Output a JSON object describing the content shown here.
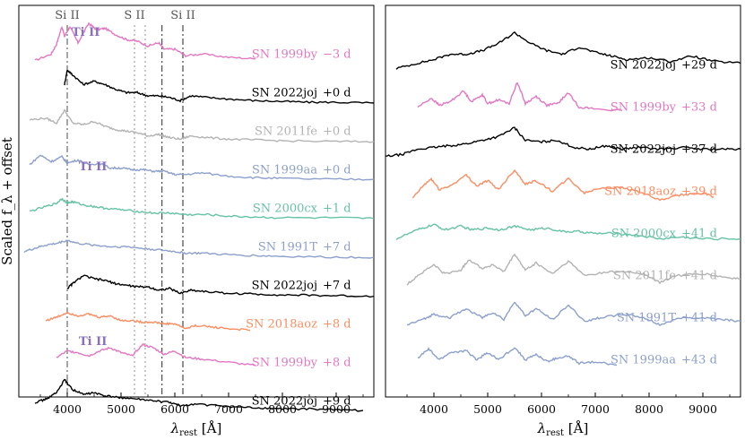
{
  "chart_data": [
    {
      "type": "line",
      "panel": "left",
      "xlabel_main": "λ",
      "xlabel_sub": "rest",
      "xlabel_unit": "[Å]",
      "ylabel": "Scaled f_λ + offset",
      "xlim": [
        3100,
        9700
      ],
      "xticks": [
        "4000",
        "5000",
        "6000",
        "7000",
        "8000",
        "9000"
      ],
      "xtick_values": [
        4000,
        5000,
        6000,
        7000,
        8000,
        9000
      ],
      "ytick_labels": [],
      "line_markers": [
        {
          "label": "Si II",
          "x": 4000,
          "style": "dashdot",
          "color": "#777777"
        },
        {
          "label": "S II",
          "x": 5250,
          "style": "dotted",
          "color": "#aaaaaa"
        },
        {
          "label": "",
          "x": 5450,
          "style": "dotted",
          "color": "#aaaaaa"
        },
        {
          "label": "",
          "x": 5760,
          "style": "dashdot",
          "color": "#555555"
        },
        {
          "label": "Si II",
          "x": 6150,
          "style": "dashdot",
          "color": "#555555"
        }
      ],
      "ion_labels": [
        {
          "label": "Ti II",
          "color": "#8a6fbf",
          "series": "SN 1999by −3 d"
        },
        {
          "label": "Ti II",
          "color": "#8a6fbf",
          "series": "SN 1999aa +0 d"
        },
        {
          "label": "Ti II",
          "color": "#8a6fbf",
          "series": "SN 1999by +8 d"
        }
      ],
      "series": [
        {
          "name": "SN 1999by",
          "epoch": "−3 d",
          "color": "#e377c2",
          "offset": 9,
          "x": [
            3400,
            3700,
            3800,
            3900,
            3950,
            4050,
            4200,
            4400,
            4550,
            4700,
            4900,
            5100,
            5300,
            5500,
            5700,
            5800,
            6000,
            6200,
            6500,
            7000,
            7500
          ],
          "y": [
            0.5,
            0.9,
            1.5,
            2.6,
            2.0,
            2.6,
            1.6,
            2.8,
            2.4,
            2.5,
            2.1,
            1.8,
            1.7,
            1.4,
            1.6,
            1.2,
            1.2,
            0.8,
            0.9,
            0.7,
            0.6
          ]
        },
        {
          "name": "SN 2022joj",
          "epoch": "+0 d",
          "color": "#000000",
          "offset": 8,
          "x": [
            3950,
            4000,
            4100,
            4300,
            4500,
            4700,
            4900,
            5100,
            5300,
            5500,
            5700,
            5900,
            6100,
            6300,
            6600,
            7000,
            7500,
            8000,
            8500,
            9000,
            9700
          ],
          "y": [
            1.4,
            2.3,
            2.0,
            1.4,
            1.6,
            1.4,
            1.1,
            0.9,
            0.9,
            0.7,
            0.7,
            0.6,
            0.4,
            0.7,
            0.6,
            0.5,
            0.4,
            0.35,
            0.3,
            0.3,
            0.25
          ]
        },
        {
          "name": "SN 2011fe",
          "epoch": "+0 d",
          "color": "#b3b3b3",
          "offset": 7,
          "x": [
            3300,
            3600,
            3800,
            3950,
            4100,
            4300,
            4500,
            4700,
            4900,
            5100,
            5300,
            5500,
            5700,
            5900,
            6100,
            6300,
            6600,
            7000,
            7500,
            8000,
            9000,
            9700
          ],
          "y": [
            1.6,
            1.7,
            1.4,
            2.2,
            1.4,
            1.3,
            1.5,
            1.2,
            1.0,
            0.9,
            0.8,
            0.6,
            0.7,
            0.5,
            0.4,
            0.6,
            0.5,
            0.4,
            0.35,
            0.3,
            0.25,
            0.25
          ]
        },
        {
          "name": "SN 1999aa",
          "epoch": "+0 d",
          "color": "#8da0cb",
          "offset": 6,
          "x": [
            3300,
            3500,
            3700,
            3900,
            4000,
            4200,
            4400,
            4600,
            4800,
            5000,
            5200,
            5400,
            5600,
            5800,
            6000,
            6200,
            6500,
            7000,
            7500,
            8000,
            9000,
            9700
          ],
          "y": [
            1.2,
            1.8,
            1.4,
            1.7,
            1.3,
            1.5,
            1.2,
            1.3,
            1.0,
            1.0,
            0.9,
            0.9,
            0.8,
            0.8,
            0.6,
            0.6,
            0.7,
            0.5,
            0.4,
            0.35,
            0.3,
            0.3
          ]
        },
        {
          "name": "SN 2000cx",
          "epoch": "+1 d",
          "color": "#66c2a5",
          "offset": 5,
          "x": [
            3300,
            3600,
            3800,
            3900,
            4000,
            4100,
            4300,
            4500,
            4700,
            5000,
            5300,
            5600,
            5900,
            6200,
            6600,
            7000,
            7500,
            8000,
            9000,
            9700
          ],
          "y": [
            0.7,
            1.0,
            1.2,
            1.5,
            1.2,
            1.3,
            1.1,
            1.0,
            0.9,
            0.8,
            0.7,
            0.6,
            0.6,
            0.5,
            0.5,
            0.4,
            0.35,
            0.3,
            0.3,
            0.25
          ]
        },
        {
          "name": "SN 1991T",
          "epoch": "+7 d",
          "color": "#8da0cb",
          "offset": 4,
          "x": [
            3200,
            3400,
            3600,
            3800,
            4000,
            4200,
            4500,
            4800,
            5100,
            5400,
            5700,
            6000,
            6200,
            6500,
            7000,
            7500,
            8000,
            9000,
            9700
          ],
          "y": [
            0.6,
            0.8,
            1.0,
            1.1,
            1.3,
            1.1,
            1.0,
            0.9,
            0.9,
            0.8,
            0.7,
            0.6,
            0.5,
            0.5,
            0.4,
            0.35,
            0.3,
            0.25,
            0.25
          ]
        },
        {
          "name": "SN 2022joj",
          "epoch": "+7 d",
          "color": "#000000",
          "offset": 3,
          "x": [
            4000,
            4100,
            4300,
            4500,
            4700,
            4900,
            5100,
            5300,
            5500,
            5700,
            5900,
            6100,
            6300,
            6600,
            7000,
            7500,
            8000,
            8500,
            9000,
            9700
          ],
          "y": [
            0.7,
            1.0,
            1.5,
            1.3,
            1.2,
            1.0,
            0.9,
            0.8,
            0.8,
            0.6,
            0.7,
            0.4,
            0.6,
            0.5,
            0.4,
            0.35,
            0.3,
            0.28,
            0.25,
            0.22
          ]
        },
        {
          "name": "SN 2018aoz",
          "epoch": "+8 d",
          "color": "#fc8d62",
          "offset": 2,
          "x": [
            3600,
            3800,
            4000,
            4200,
            4400,
            4600,
            4800,
            5000,
            5200,
            5400,
            5600,
            5800,
            6000,
            6200,
            6400,
            6700,
            7000,
            7400
          ],
          "y": [
            1.1,
            1.3,
            1.6,
            1.4,
            1.5,
            1.3,
            1.4,
            1.1,
            1.1,
            1.0,
            1.0,
            0.9,
            0.9,
            0.6,
            0.8,
            0.7,
            0.6,
            0.5
          ]
        },
        {
          "name": "SN 1999by",
          "epoch": "+8 d",
          "color": "#e377c2",
          "offset": 1,
          "x": [
            3800,
            4000,
            4200,
            4400,
            4600,
            4800,
            5000,
            5200,
            5400,
            5600,
            5800,
            6000,
            6200,
            6500,
            7000,
            7500
          ],
          "y": [
            1.2,
            1.6,
            1.5,
            1.3,
            1.6,
            1.8,
            1.5,
            1.3,
            2.0,
            1.8,
            1.4,
            1.6,
            1.2,
            1.1,
            0.9,
            0.7
          ]
        },
        {
          "name": "SN 2022joj",
          "epoch": "+9 d",
          "color": "#000000",
          "offset": 0,
          "x": [
            3400,
            3600,
            3800,
            3950,
            4100,
            4300,
            4500,
            4700,
            5000,
            5300,
            5600,
            5900,
            6100,
            6400,
            6800,
            7200,
            7600,
            8000,
            8500,
            9000,
            9500
          ],
          "y": [
            0.8,
            1.0,
            1.4,
            2.2,
            1.6,
            1.3,
            1.4,
            1.2,
            1.1,
            1.0,
            0.9,
            0.8,
            0.6,
            0.7,
            0.6,
            0.5,
            0.45,
            0.4,
            0.4,
            0.35,
            0.3
          ]
        }
      ]
    },
    {
      "type": "line",
      "panel": "right",
      "xlabel_main": "λ",
      "xlabel_sub": "rest",
      "xlabel_unit": "[Å]",
      "xlim": [
        3100,
        9700
      ],
      "xticks": [
        "4000",
        "5000",
        "6000",
        "7000",
        "8000",
        "9000"
      ],
      "xtick_values": [
        4000,
        5000,
        6000,
        7000,
        8000,
        9000
      ],
      "series": [
        {
          "name": "SN 2022joj",
          "epoch": "+29 d",
          "color": "#000000",
          "offset": 8,
          "x": [
            3300,
            3700,
            4000,
            4300,
            4600,
            4900,
            5200,
            5500,
            5800,
            6100,
            6400,
            6700,
            7000,
            7300,
            7600,
            8000,
            8400,
            8800,
            9200,
            9700
          ],
          "y": [
            0.6,
            0.9,
            1.1,
            1.4,
            1.4,
            1.6,
            2.0,
            2.6,
            2.0,
            1.6,
            1.4,
            1.8,
            1.5,
            1.3,
            1.1,
            1.2,
            1.0,
            1.3,
            1.0,
            0.9
          ]
        },
        {
          "name": "SN 1999by",
          "epoch": "+33 d",
          "color": "#e377c2",
          "offset": 7,
          "x": [
            3700,
            3950,
            4100,
            4300,
            4550,
            4700,
            4900,
            5000,
            5200,
            5400,
            5550,
            5700,
            5900,
            6100,
            6300,
            6500,
            6700,
            7000,
            7500
          ],
          "y": [
            0.8,
            1.3,
            0.9,
            1.1,
            1.7,
            1.1,
            1.5,
            1.0,
            1.2,
            1.0,
            2.2,
            1.0,
            1.4,
            0.9,
            1.0,
            1.6,
            0.8,
            0.7,
            0.6
          ]
        },
        {
          "name": "SN 2022joj",
          "epoch": "+37 d",
          "color": "#000000",
          "offset": 6,
          "x": [
            3100,
            3400,
            3700,
            4000,
            4300,
            4600,
            4900,
            5200,
            5500,
            5700,
            6000,
            6300,
            6600,
            6900,
            7200,
            7500,
            7800,
            8200,
            8600,
            9000,
            9400,
            9700
          ],
          "y": [
            0.4,
            0.5,
            0.8,
            0.9,
            1.0,
            1.1,
            1.3,
            1.5,
            2.0,
            1.3,
            1.2,
            1.3,
            0.9,
            0.8,
            1.0,
            0.8,
            0.9,
            0.8,
            0.9,
            0.8,
            0.8,
            0.8
          ]
        },
        {
          "name": "SN 2018aoz",
          "epoch": "+39 d",
          "color": "#fc8d62",
          "offset": 5,
          "x": [
            3600,
            3800,
            3950,
            4100,
            4300,
            4600,
            4800,
            5000,
            5200,
            5500,
            5700,
            5900,
            6200,
            6500,
            6800,
            7100,
            7500,
            7800,
            8200,
            8600,
            9000,
            9200
          ],
          "y": [
            0.4,
            1.1,
            1.5,
            0.9,
            1.1,
            1.7,
            1.1,
            1.4,
            0.9,
            2.0,
            1.2,
            1.4,
            0.8,
            1.5,
            0.7,
            1.0,
            1.0,
            0.8,
            0.3,
            0.6,
            0.7,
            0.5
          ]
        },
        {
          "name": "SN 2000cx",
          "epoch": "+41 d",
          "color": "#66c2a5",
          "offset": 4,
          "x": [
            3300,
            3700,
            4000,
            4200,
            4500,
            4700,
            5000,
            5200,
            5500,
            5800,
            6100,
            6400,
            6700,
            7000,
            7400,
            7800,
            8200,
            8600,
            9000,
            9700
          ],
          "y": [
            0.5,
            1.0,
            1.3,
            1.0,
            1.2,
            1.0,
            1.1,
            1.0,
            1.2,
            1.0,
            1.1,
            0.9,
            0.9,
            0.8,
            0.8,
            0.7,
            0.5,
            0.6,
            0.5,
            0.5
          ]
        },
        {
          "name": "SN 2011fe",
          "epoch": "+41 d",
          "color": "#b3b3b3",
          "offset": 3,
          "x": [
            3500,
            3700,
            4000,
            4200,
            4500,
            4650,
            4900,
            5100,
            5300,
            5500,
            5700,
            5900,
            6200,
            6500,
            6800,
            7200,
            7600,
            7900,
            8200,
            8500,
            9000,
            9400,
            9700
          ],
          "y": [
            0.3,
            0.8,
            1.4,
            0.9,
            1.1,
            1.7,
            1.2,
            1.4,
            1.0,
            2.0,
            1.1,
            1.5,
            0.9,
            1.6,
            0.8,
            1.0,
            1.0,
            0.9,
            0.4,
            0.8,
            0.9,
            0.7,
            0.6
          ]
        },
        {
          "name": "SN 1991T",
          "epoch": "+41 d",
          "color": "#8da0cb",
          "offset": 2,
          "x": [
            3500,
            3800,
            4000,
            4300,
            4600,
            4900,
            5100,
            5300,
            5500,
            5700,
            5900,
            6200,
            6500,
            6800,
            7100,
            7500,
            7900,
            8200,
            8600,
            9000,
            9400,
            9700
          ],
          "y": [
            0.4,
            0.7,
            1.0,
            0.8,
            1.3,
            0.8,
            1.1,
            0.7,
            1.7,
            0.9,
            1.3,
            0.7,
            1.5,
            0.6,
            0.8,
            1.0,
            0.8,
            0.4,
            0.8,
            0.8,
            0.7,
            0.6
          ]
        },
        {
          "name": "SN 1999aa",
          "epoch": "+43 d",
          "color": "#8da0cb",
          "offset": 1,
          "x": [
            3700,
            3900,
            4100,
            4300,
            4600,
            4800,
            5000,
            5200,
            5500,
            5700,
            5900,
            6100,
            6300,
            6500,
            6700,
            7000,
            7400
          ],
          "y": [
            0.9,
            1.4,
            0.8,
            1.2,
            1.3,
            0.8,
            1.2,
            0.8,
            1.5,
            0.8,
            1.1,
            0.7,
            0.9,
            1.0,
            0.6,
            0.7,
            0.5
          ]
        }
      ]
    }
  ]
}
